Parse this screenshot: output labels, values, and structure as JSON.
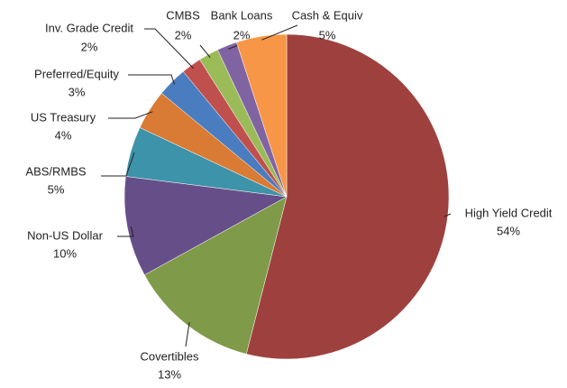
{
  "chart_data": {
    "type": "pie",
    "categories": [
      "High Yield  Credit",
      "Covertibles",
      "Non-US Dollar",
      "ABS/RMBS",
      "US Treasury",
      "Preferred/Equity",
      "Inv. Grade Credit",
      "CMBS",
      "Bank Loans",
      "Cash & Equiv"
    ],
    "values": [
      54,
      13,
      10,
      5,
      4,
      3,
      2,
      2,
      2,
      5
    ],
    "value_labels": [
      "54%",
      "13%",
      "10%",
      "5%",
      "4%",
      "3%",
      "2%",
      "2%",
      "2%",
      "5%"
    ],
    "colors": [
      "#9e413e",
      "#7f9a48",
      "#664f89",
      "#3d93a9",
      "#d97b34",
      "#4a7dbf",
      "#c0504d",
      "#9bbb59",
      "#8064a2",
      "#f79646"
    ]
  }
}
